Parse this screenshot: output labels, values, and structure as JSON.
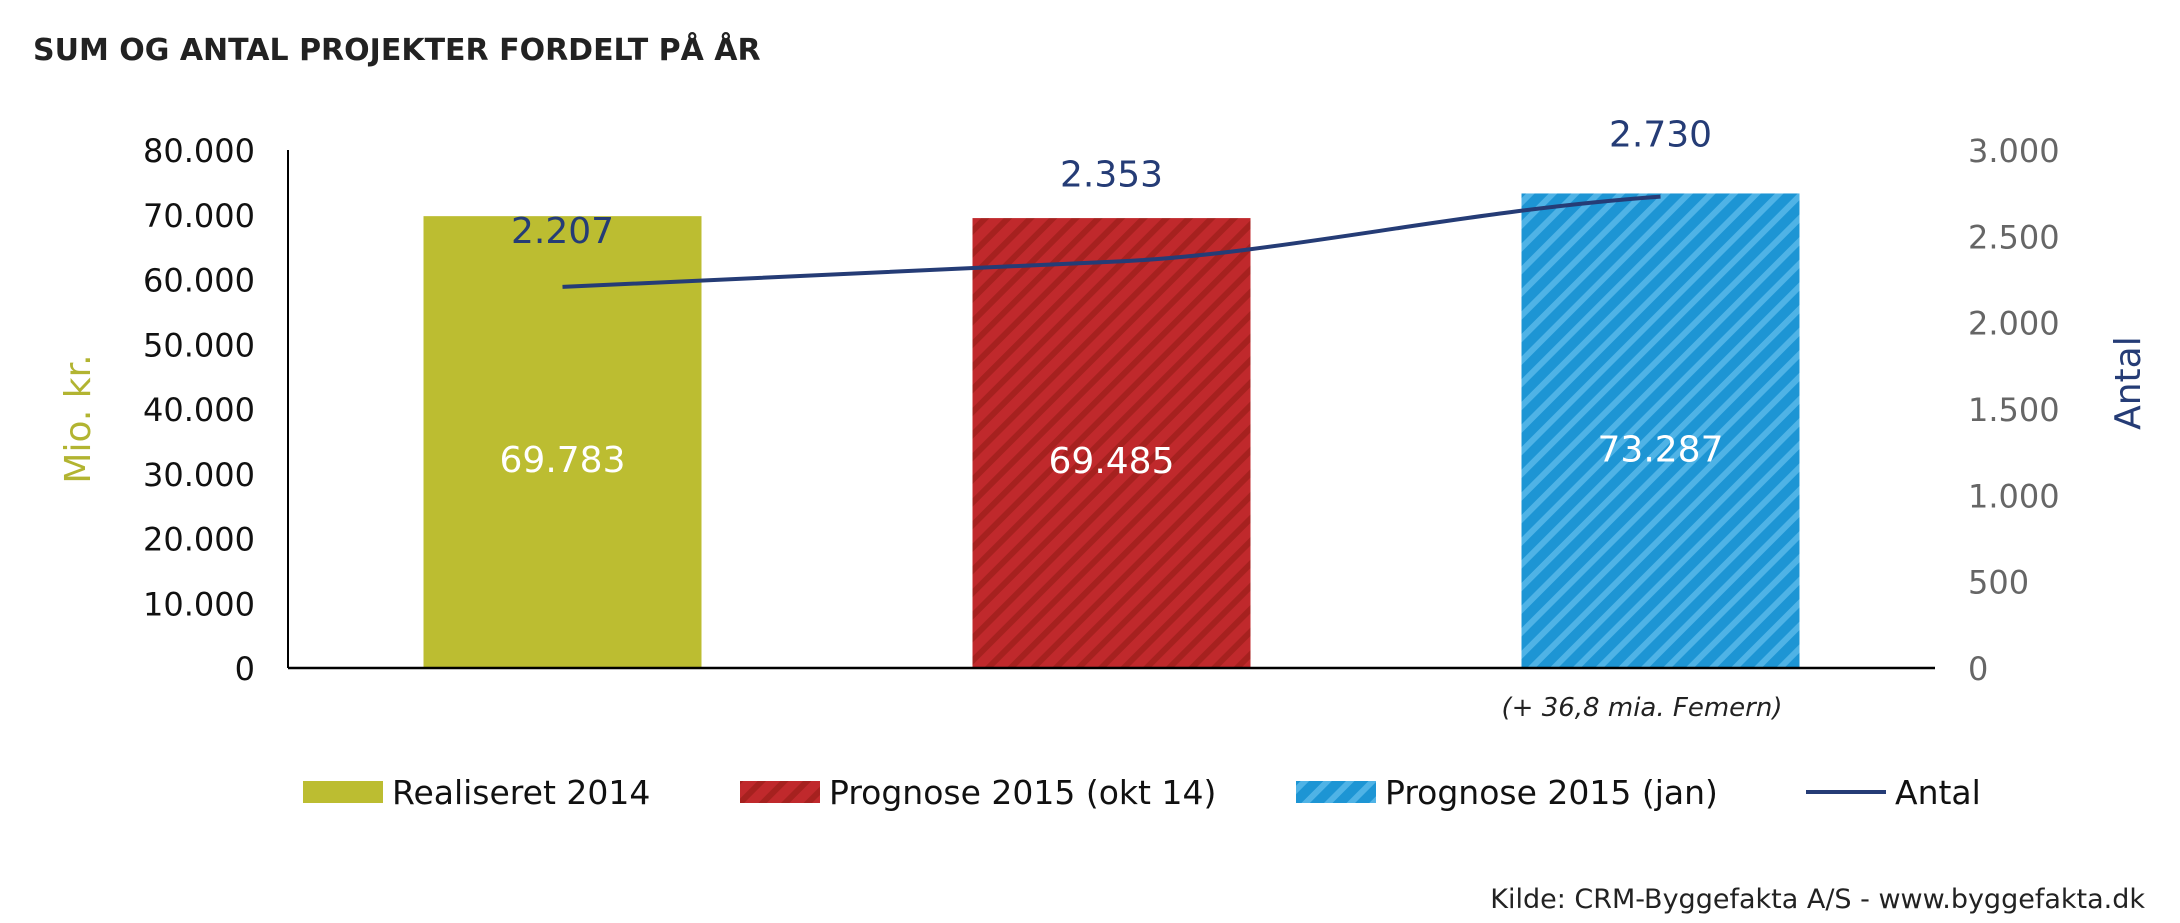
{
  "header": {
    "title": "SUM OG ANTAL PROJEKTER FORDELT PÅ ÅR"
  },
  "footer": {
    "source": "Kilde: CRM-Byggefakta A/S - www.byggefakta.dk"
  },
  "colors": {
    "realiseret": "#bcbd31",
    "prognose_okt": "#c0292c",
    "prognose_jan": "#1d95d4",
    "antal_line": "#253c76",
    "left_axis_label": "#b2b431",
    "right_axis_label": "#253c76"
  },
  "chart_data": {
    "type": "bar",
    "title": "SUM OG ANTAL PROJEKTER FORDELT PÅ ÅR",
    "categories": [
      "Realiseret 2014",
      "Prognose 2015 (okt 14)",
      "Prognose 2015 (jan)"
    ],
    "series": [
      {
        "name": "Realiseret 2014",
        "type": "bar",
        "axis": "left",
        "values": [
          69783,
          null,
          null
        ],
        "labels": [
          "69.783",
          "",
          ""
        ],
        "pattern": "solid"
      },
      {
        "name": "Prognose 2015 (okt 14)",
        "type": "bar",
        "axis": "left",
        "values": [
          null,
          69485,
          null
        ],
        "labels": [
          "",
          "69.485",
          ""
        ],
        "pattern": "hatched"
      },
      {
        "name": "Prognose 2015 (jan)",
        "type": "bar",
        "axis": "left",
        "values": [
          null,
          null,
          73287
        ],
        "labels": [
          "",
          "",
          "73.287"
        ],
        "pattern": "hatched"
      },
      {
        "name": "Antal",
        "type": "line",
        "axis": "right",
        "values": [
          2207,
          2353,
          2730
        ],
        "labels": [
          "2.207",
          "2.353",
          "2.730"
        ]
      }
    ],
    "ylabel": "Mio. kr.",
    "ylim": [
      0,
      80000
    ],
    "yticks": [
      0,
      10000,
      20000,
      30000,
      40000,
      50000,
      60000,
      70000,
      80000
    ],
    "ytick_labels": [
      "0",
      "10.000",
      "20.000",
      "30.000",
      "40.000",
      "50.000",
      "60.000",
      "70.000",
      "80.000"
    ],
    "y2label": "Antal",
    "y2lim": [
      0,
      3000
    ],
    "y2ticks": [
      0,
      500,
      1000,
      1500,
      2000,
      2500,
      3000
    ],
    "y2tick_labels": [
      "0",
      "500",
      "1.000",
      "1.500",
      "2.000",
      "2.500",
      "3.000"
    ],
    "annotation": "(+ 36,8 mia. Femern)",
    "legend": [
      "Realiseret 2014",
      "Prognose 2015 (okt 14)",
      "Prognose 2015 (jan)",
      "Antal"
    ],
    "legend_position": "bottom",
    "grid": false
  }
}
